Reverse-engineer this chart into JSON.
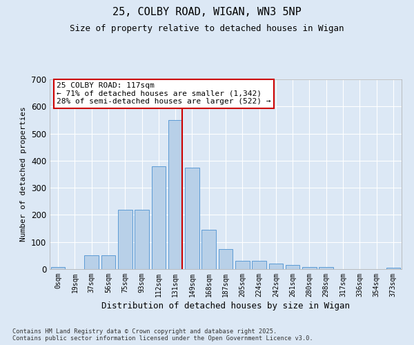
{
  "title_line1": "25, COLBY ROAD, WIGAN, WN3 5NP",
  "title_line2": "Size of property relative to detached houses in Wigan",
  "xlabel": "Distribution of detached houses by size in Wigan",
  "ylabel": "Number of detached properties",
  "categories": [
    "0sqm",
    "19sqm",
    "37sqm",
    "56sqm",
    "75sqm",
    "93sqm",
    "112sqm",
    "131sqm",
    "149sqm",
    "168sqm",
    "187sqm",
    "205sqm",
    "224sqm",
    "242sqm",
    "261sqm",
    "280sqm",
    "298sqm",
    "317sqm",
    "336sqm",
    "354sqm",
    "373sqm"
  ],
  "bar_values": [
    7,
    0,
    50,
    50,
    220,
    220,
    380,
    550,
    375,
    145,
    75,
    30,
    30,
    20,
    15,
    8,
    8,
    0,
    0,
    0,
    5
  ],
  "bar_color": "#b8d0e8",
  "bar_edge_color": "#5b9bd5",
  "bg_color": "#dce8f5",
  "grid_color": "#ffffff",
  "vline_x": 7.42,
  "vline_color": "#cc0000",
  "annotation_title": "25 COLBY ROAD: 117sqm",
  "annotation_line1": "← 71% of detached houses are smaller (1,342)",
  "annotation_line2": "28% of semi-detached houses are larger (522) →",
  "annotation_box_color": "#ffffff",
  "annotation_box_edge": "#cc0000",
  "ylim": [
    0,
    700
  ],
  "yticks": [
    0,
    100,
    200,
    300,
    400,
    500,
    600,
    700
  ],
  "footer_line1": "Contains HM Land Registry data © Crown copyright and database right 2025.",
  "footer_line2": "Contains public sector information licensed under the Open Government Licence v3.0."
}
